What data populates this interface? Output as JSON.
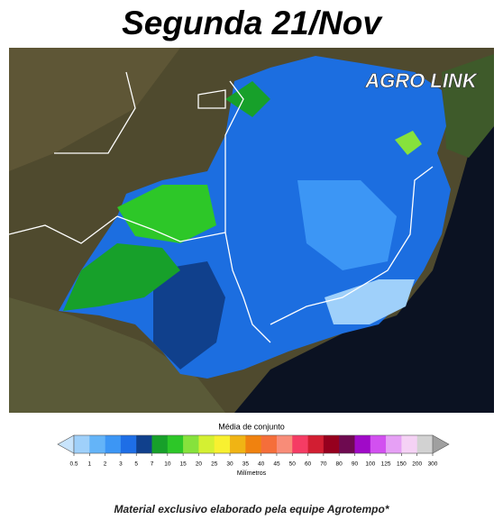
{
  "header": {
    "title": "Segunda 21/Nov"
  },
  "map": {
    "logo": "AGRO LINK"
  },
  "legend": {
    "title": "Média de conjunto",
    "unit": "Milímetros",
    "ticks": [
      0.5,
      1,
      2,
      3,
      5,
      7,
      10,
      15,
      20,
      25,
      30,
      35,
      40,
      45,
      50,
      60,
      70,
      80,
      90,
      100,
      125,
      150,
      200,
      300
    ],
    "colors": [
      "#9fd0fa",
      "#64b4f8",
      "#3c96f5",
      "#1e6ee6",
      "#10408c",
      "#17a02a",
      "#2dc728",
      "#86e23c",
      "#d4f032",
      "#f8f030",
      "#f0b414",
      "#f0820f",
      "#f56e3a",
      "#f88c78",
      "#f53c64",
      "#d21e32",
      "#96001e",
      "#6e0a50",
      "#a00ac8",
      "#d250f0",
      "#e6a0f5",
      "#f5d2f5",
      "#d2d2d2"
    ],
    "under_color": "#c8e4fc",
    "over_color": "#a0a0a0"
  },
  "footer": {
    "note": "Material exclusivo elaborado pela equipe Agrotempo*"
  }
}
